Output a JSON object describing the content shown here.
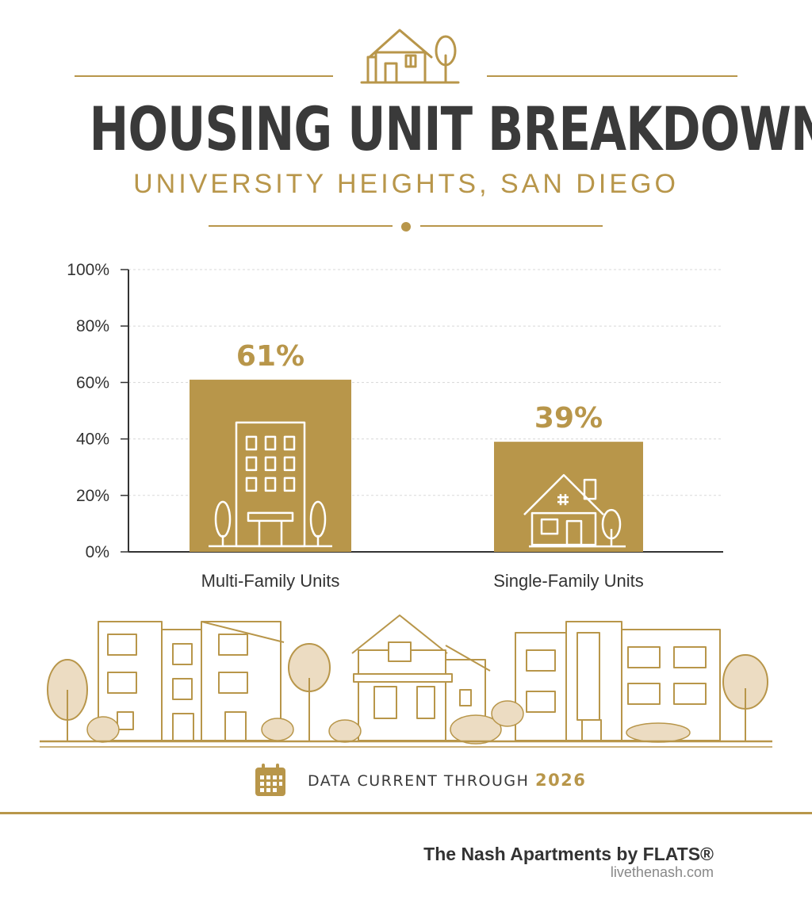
{
  "header": {
    "icon": "house-and-tree-icon",
    "title": "HOUSING UNIT BREAKDOWN",
    "subtitle": "UNIVERSITY HEIGHTS, SAN DIEGO"
  },
  "colors": {
    "accent": "#b8964a",
    "text_dark": "#3a3a3a",
    "illustration_fill": "#ecdcc2"
  },
  "chart_data": {
    "type": "bar",
    "categories": [
      "Multi-Family Units",
      "Single-Family Units"
    ],
    "values": [
      61,
      39
    ],
    "data_labels": [
      "61%",
      "39%"
    ],
    "bar_icons": [
      "apartment-building-icon",
      "house-icon"
    ],
    "ylim": [
      0,
      100
    ],
    "yticks": [
      "0%",
      "20%",
      "40%",
      "60%",
      "80%",
      "100%"
    ],
    "ytick_values": [
      0,
      20,
      40,
      60,
      80,
      100
    ],
    "grid": true,
    "xlabel": "",
    "ylabel": ""
  },
  "footer": {
    "icon": "calendar-icon",
    "note": "DATA CURRENT THROUGH",
    "year": "2026",
    "brand": "The Nash Apartments by FLATS®",
    "website": "livethenash.com"
  }
}
